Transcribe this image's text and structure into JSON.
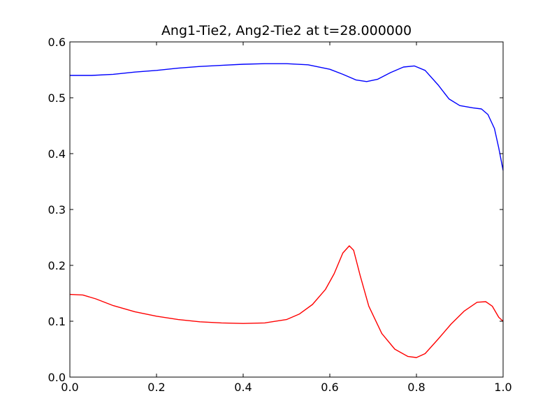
{
  "chart_data": {
    "type": "line",
    "title": "Ang1-Tie2, Ang2-Tie2 at t=28.000000",
    "xlabel": "",
    "ylabel": "",
    "xlim": [
      0.0,
      1.0
    ],
    "ylim": [
      0.0,
      0.6
    ],
    "xticks": [
      "0.0",
      "0.2",
      "0.4",
      "0.6",
      "0.8",
      "1.0"
    ],
    "yticks": [
      "0.0",
      "0.1",
      "0.2",
      "0.3",
      "0.4",
      "0.5",
      "0.6"
    ],
    "grid": false,
    "legend": "none",
    "series": [
      {
        "color": "#0000ff",
        "x": [
          0.0,
          0.05,
          0.1,
          0.15,
          0.2,
          0.25,
          0.3,
          0.35,
          0.4,
          0.45,
          0.5,
          0.55,
          0.6,
          0.63,
          0.66,
          0.685,
          0.71,
          0.74,
          0.77,
          0.795,
          0.82,
          0.85,
          0.875,
          0.9,
          0.93,
          0.95,
          0.965,
          0.98,
          0.99,
          1.0
        ],
        "y": [
          0.54,
          0.54,
          0.542,
          0.546,
          0.549,
          0.553,
          0.556,
          0.558,
          0.56,
          0.561,
          0.561,
          0.559,
          0.551,
          0.542,
          0.532,
          0.529,
          0.533,
          0.545,
          0.555,
          0.557,
          0.549,
          0.523,
          0.498,
          0.486,
          0.482,
          0.48,
          0.47,
          0.445,
          0.41,
          0.37
        ]
      },
      {
        "color": "#ff0000",
        "x": [
          0.0,
          0.03,
          0.06,
          0.1,
          0.15,
          0.2,
          0.25,
          0.3,
          0.35,
          0.4,
          0.45,
          0.5,
          0.53,
          0.56,
          0.59,
          0.61,
          0.63,
          0.645,
          0.655,
          0.67,
          0.69,
          0.72,
          0.75,
          0.78,
          0.8,
          0.82,
          0.85,
          0.88,
          0.91,
          0.94,
          0.96,
          0.975,
          0.99,
          1.0
        ],
        "y": [
          0.148,
          0.147,
          0.14,
          0.128,
          0.117,
          0.109,
          0.103,
          0.099,
          0.097,
          0.096,
          0.097,
          0.103,
          0.113,
          0.13,
          0.157,
          0.185,
          0.222,
          0.235,
          0.227,
          0.182,
          0.127,
          0.078,
          0.05,
          0.037,
          0.035,
          0.042,
          0.068,
          0.095,
          0.118,
          0.134,
          0.135,
          0.127,
          0.107,
          0.1
        ]
      }
    ]
  }
}
